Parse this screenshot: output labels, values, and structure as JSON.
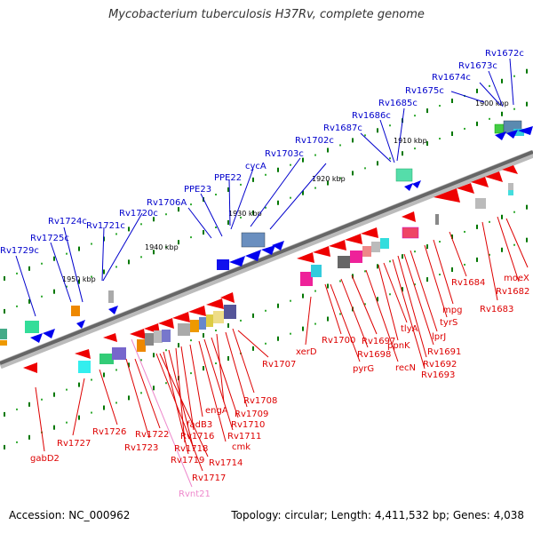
{
  "title": "Mycobacterium tuberculosis H37Rv, complete genome",
  "footer": {
    "accession": "Accession: NC_000962",
    "summary": "Topology: circular; Length: 4,411,532 bp; Genes: 4,038"
  },
  "colors": {
    "forward_label": "#0000cc",
    "reverse_label": "#dd0000",
    "rna_label": "#ee88cc",
    "backbone": "#888888",
    "tick": "#007700"
  },
  "kbp_marks": [
    "1900 kbp",
    "1910 kbp",
    "1920 kbp",
    "1930 kbp",
    "1940 kbp",
    "1950 kbp"
  ],
  "forward_genes": [
    "Rv1672c",
    "Rv1673c",
    "Rv1674c",
    "Rv1675c",
    "Rv1685c",
    "Rv1686c",
    "Rv1687c",
    "Rv1702c",
    "Rv1703c",
    "cycA",
    "PPE22",
    "PPE23",
    "Rv1706A",
    "Rv1720c",
    "Rv1721c",
    "Rv1724c",
    "Rv1725c",
    "Rv1729c"
  ],
  "reverse_genes": [
    "moeX",
    "Rv1682",
    "Rv1684",
    "Rv1683",
    "mpg",
    "tyrS",
    "lprJ",
    "Rv1691",
    "Rv1692",
    "Rv1693",
    "tlyA",
    "ppnK",
    "recN",
    "Rv1697",
    "Rv1698",
    "Rv1700",
    "pyrG",
    "xerD",
    "Rv1707",
    "Rv1708",
    "Rv1709",
    "engA",
    "Rv1710",
    "Rv1711",
    "cmk",
    "fadB3",
    "Rv1716",
    "Rv1718",
    "Rv1719",
    "Rv1714",
    "Rv1717",
    "Rv1722",
    "Rv1723",
    "Rv1726",
    "Rv1727",
    "gabD2"
  ],
  "rna_genes": [
    "Rvnt21"
  ]
}
